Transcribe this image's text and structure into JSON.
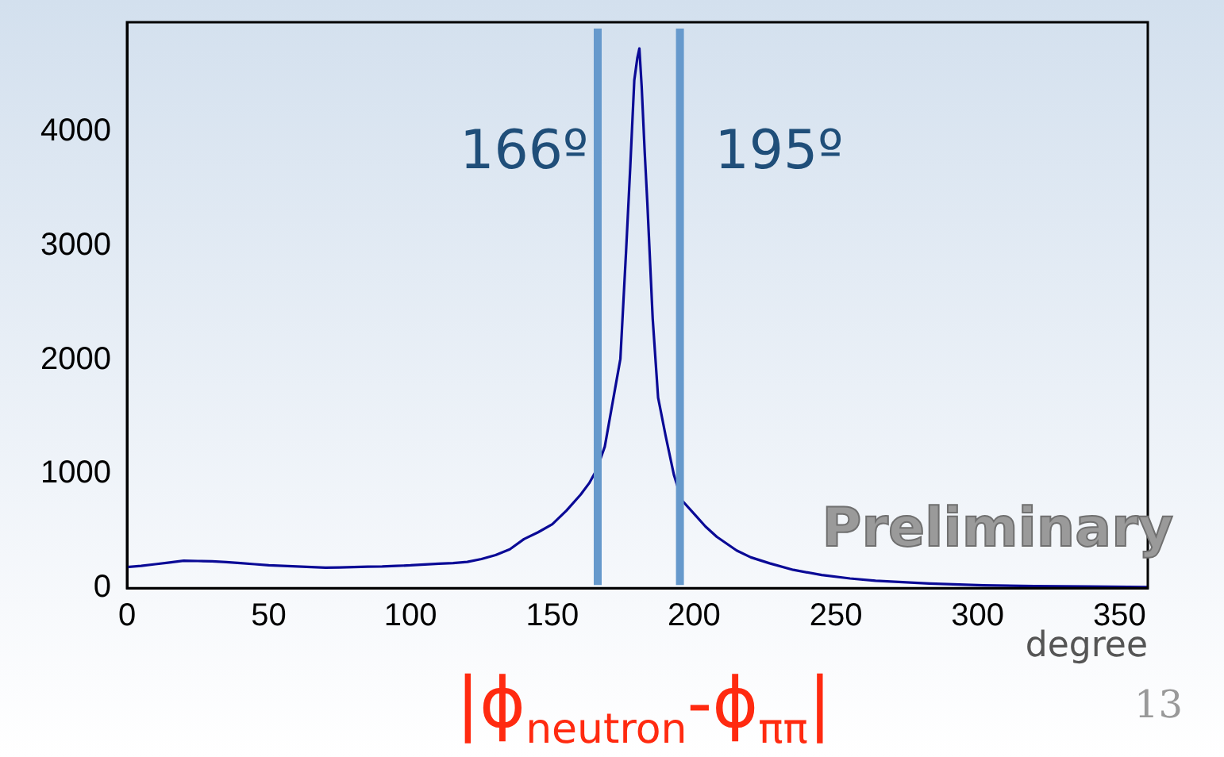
{
  "chart_data": {
    "type": "line",
    "xlabel": "degree",
    "x": [
      0,
      5,
      10,
      15,
      20,
      25,
      30,
      35,
      40,
      45,
      50,
      55,
      60,
      65,
      70,
      75,
      80,
      85,
      90,
      95,
      100,
      105,
      110,
      115,
      120,
      125,
      130,
      135,
      140,
      145,
      150,
      155,
      160,
      163,
      165,
      166.5,
      168.5,
      171,
      172.5,
      174,
      176,
      177.5,
      178.9,
      180,
      180.7,
      181.5,
      182.6,
      183.5,
      185.4,
      187.3,
      190,
      192.9,
      195.7,
      200.4,
      204,
      208,
      215,
      220,
      226.6,
      235,
      245,
      255,
      264,
      283,
      302,
      320,
      339,
      360
    ],
    "series": [
      {
        "color": "#0a0a96",
        "values": [
          185,
          195,
          210,
          225,
          240,
          238,
          235,
          228,
          220,
          210,
          200,
          195,
          190,
          185,
          180,
          182,
          185,
          188,
          190,
          195,
          200,
          208,
          215,
          220,
          230,
          255,
          290,
          340,
          430,
          490,
          560,
          680,
          820,
          920,
          1010,
          1100,
          1240,
          1590,
          1800,
          2010,
          2950,
          3700,
          4450,
          4650,
          4730,
          4400,
          3810,
          3380,
          2360,
          1670,
          1330,
          990,
          770,
          640,
          540,
          450,
          330,
          270,
          218,
          160,
          115,
          85,
          65,
          40,
          25,
          18,
          15,
          10
        ]
      }
    ],
    "xlim": [
      0,
      360
    ],
    "xticks": [
      0,
      50,
      100,
      150,
      200,
      250,
      300,
      350
    ],
    "ylim": [
      0,
      4960
    ],
    "yticks": [
      0,
      1000,
      2000,
      3000,
      4000
    ],
    "grid": false,
    "legend": false,
    "marker": "none",
    "line_style": "solid",
    "ref_lines": [
      {
        "axis": "x",
        "value": 166,
        "label": "166º",
        "color": "#6699cc"
      },
      {
        "axis": "x",
        "value": 195,
        "label": "195º",
        "color": "#6699cc"
      }
    ],
    "annotations": [
      "|ϕ$_{neutron}$-ϕ$_{ππ}$|",
      "Preliminary",
      "13"
    ]
  }
}
